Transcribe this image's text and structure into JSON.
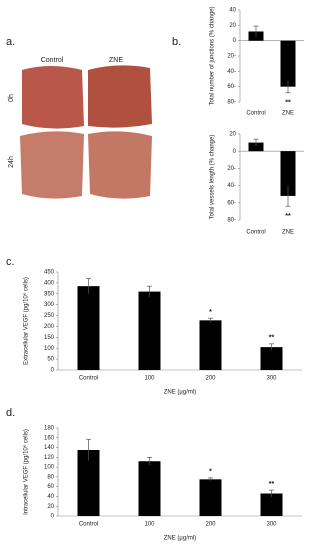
{
  "panel_a": {
    "label": "a.",
    "columns": [
      "Control",
      "ZNE"
    ],
    "rows": [
      "0h",
      "24h"
    ]
  },
  "chart_data": [
    {
      "type": "bar",
      "panel_label": "b.",
      "ylabel": "Total number of junctions (% change)",
      "categories": [
        "Control",
        "ZNE"
      ],
      "values": [
        12,
        -60
      ],
      "errors": [
        7,
        8
      ],
      "significance": [
        null,
        "**"
      ],
      "color": "#000000",
      "ylim": [
        -80,
        40
      ],
      "yticks": [
        {
          "value": 40,
          "label": "40"
        },
        {
          "value": 20,
          "label": "20"
        },
        {
          "value": 0,
          "label": "0"
        },
        {
          "value": -20,
          "label": "20-"
        },
        {
          "value": -40,
          "label": "40-"
        },
        {
          "value": -60,
          "label": "60-"
        },
        {
          "value": -80,
          "label": "80-"
        }
      ]
    },
    {
      "type": "bar",
      "ylabel": "Total vessels length (% change)",
      "categories": [
        "Control",
        "ZNE"
      ],
      "values": [
        10,
        -52
      ],
      "errors": [
        4,
        12
      ],
      "significance": [
        null,
        "**"
      ],
      "color": "#000000",
      "ylim": [
        -80,
        20
      ],
      "yticks": [
        {
          "value": 20,
          "label": "20"
        },
        {
          "value": 0,
          "label": "0"
        },
        {
          "value": -20,
          "label": "20-"
        },
        {
          "value": -40,
          "label": "40-"
        },
        {
          "value": -60,
          "label": "60-"
        },
        {
          "value": -80,
          "label": "80-"
        }
      ]
    },
    {
      "type": "bar",
      "panel_label": "c.",
      "ylabel": "Extracellular VEGF  (pg/10⁶ cells)",
      "xlabel": "ZNE (µg/ml)",
      "categories": [
        "Control",
        "100",
        "200",
        "300"
      ],
      "values": [
        385,
        360,
        228,
        105
      ],
      "errors": [
        35,
        25,
        10,
        15
      ],
      "significance": [
        null,
        null,
        "*",
        "**"
      ],
      "color": "#000000",
      "ylim": [
        0,
        450
      ],
      "yticks": [
        0,
        50,
        100,
        150,
        200,
        250,
        300,
        350,
        400,
        450
      ]
    },
    {
      "type": "bar",
      "panel_label": "d.",
      "ylabel": "Intracellular VEGF (pg/10⁶ cells)",
      "xlabel": "ZNE (µg/ml)",
      "categories": [
        "Control",
        "100",
        "200",
        "300"
      ],
      "values": [
        135,
        112,
        75,
        46
      ],
      "errors": [
        22,
        8,
        3,
        7
      ],
      "significance": [
        null,
        null,
        "*",
        "**"
      ],
      "color": "#000000",
      "ylim": [
        0,
        180
      ],
      "yticks": [
        0,
        20,
        40,
        60,
        80,
        100,
        120,
        140,
        160,
        180
      ]
    }
  ]
}
